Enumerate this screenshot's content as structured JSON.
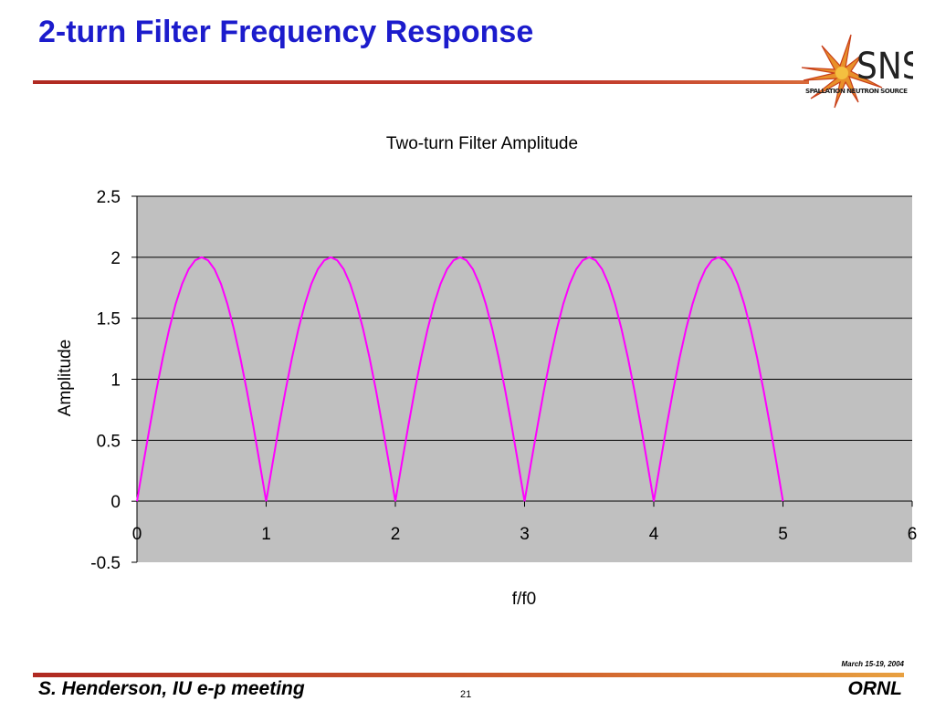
{
  "slide": {
    "title": "2-turn Filter Frequency Response",
    "logo_text": "SNS",
    "logo_subtext": "SPALLATION NEUTRON SOURCE"
  },
  "footer": {
    "left": "S. Henderson, IU e-p meeting",
    "page": "21",
    "date": "March 15-19, 2004",
    "right": "ORNL"
  },
  "colors": {
    "title": "#1c1ccc",
    "plot_background": "#c0c0c0",
    "curve": "#ff00ff",
    "rule": "#b02a22"
  },
  "chart_data": {
    "type": "line",
    "title": "Two-turn Filter Amplitude",
    "xlabel": "f/f0",
    "ylabel": "Amplitude",
    "xlim": [
      0,
      6
    ],
    "ylim": [
      -0.5,
      2.5
    ],
    "x_ticks": [
      "0",
      "1",
      "2",
      "3",
      "4",
      "5",
      "6"
    ],
    "y_ticks": [
      "-0.5",
      "0",
      "0.5",
      "1",
      "1.5",
      "2",
      "2.5"
    ],
    "grid": "horizontal",
    "legend": "none",
    "series": [
      {
        "x": [
          0,
          0.05,
          0.1,
          0.15,
          0.2,
          0.25,
          0.3,
          0.35,
          0.4,
          0.45,
          0.5,
          0.55,
          0.6,
          0.65,
          0.7,
          0.75,
          0.8,
          0.85,
          0.9,
          0.95,
          1,
          1.05,
          1.1,
          1.15,
          1.2,
          1.25,
          1.3,
          1.35,
          1.4,
          1.45,
          1.5,
          1.55,
          1.6,
          1.65,
          1.7,
          1.75,
          1.8,
          1.85,
          1.9,
          1.95,
          2,
          2.05,
          2.1,
          2.15,
          2.2,
          2.25,
          2.3,
          2.35,
          2.4,
          2.45,
          2.5,
          2.55,
          2.6,
          2.65,
          2.7,
          2.75,
          2.8,
          2.85,
          2.9,
          2.95,
          3,
          3.05,
          3.1,
          3.15,
          3.2,
          3.25,
          3.3,
          3.35,
          3.4,
          3.45,
          3.5,
          3.55,
          3.6,
          3.65,
          3.7,
          3.75,
          3.8,
          3.85,
          3.9,
          3.95,
          4,
          4.05,
          4.1,
          4.15,
          4.2,
          4.25,
          4.3,
          4.35,
          4.4,
          4.45,
          4.5,
          4.55,
          4.6,
          4.65,
          4.7,
          4.75,
          4.8,
          4.85,
          4.9,
          4.95,
          5
        ],
        "values": [
          0,
          0.313,
          0.618,
          0.908,
          1.176,
          1.414,
          1.618,
          1.782,
          1.902,
          1.975,
          2,
          1.975,
          1.902,
          1.782,
          1.618,
          1.414,
          1.176,
          0.908,
          0.618,
          0.313,
          0,
          0.313,
          0.618,
          0.908,
          1.176,
          1.414,
          1.618,
          1.782,
          1.902,
          1.975,
          2,
          1.975,
          1.902,
          1.782,
          1.618,
          1.414,
          1.176,
          0.908,
          0.618,
          0.313,
          0,
          0.313,
          0.618,
          0.908,
          1.176,
          1.414,
          1.618,
          1.782,
          1.902,
          1.975,
          2,
          1.975,
          1.902,
          1.782,
          1.618,
          1.414,
          1.176,
          0.908,
          0.618,
          0.313,
          0,
          0.313,
          0.618,
          0.908,
          1.176,
          1.414,
          1.618,
          1.782,
          1.902,
          1.975,
          2,
          1.975,
          1.902,
          1.782,
          1.618,
          1.414,
          1.176,
          0.908,
          0.618,
          0.313,
          0,
          0.313,
          0.618,
          0.908,
          1.176,
          1.414,
          1.618,
          1.782,
          1.902,
          1.975,
          2,
          1.975,
          1.902,
          1.782,
          1.618,
          1.414,
          1.176,
          0.908,
          0.618,
          0.313,
          0
        ]
      }
    ]
  }
}
